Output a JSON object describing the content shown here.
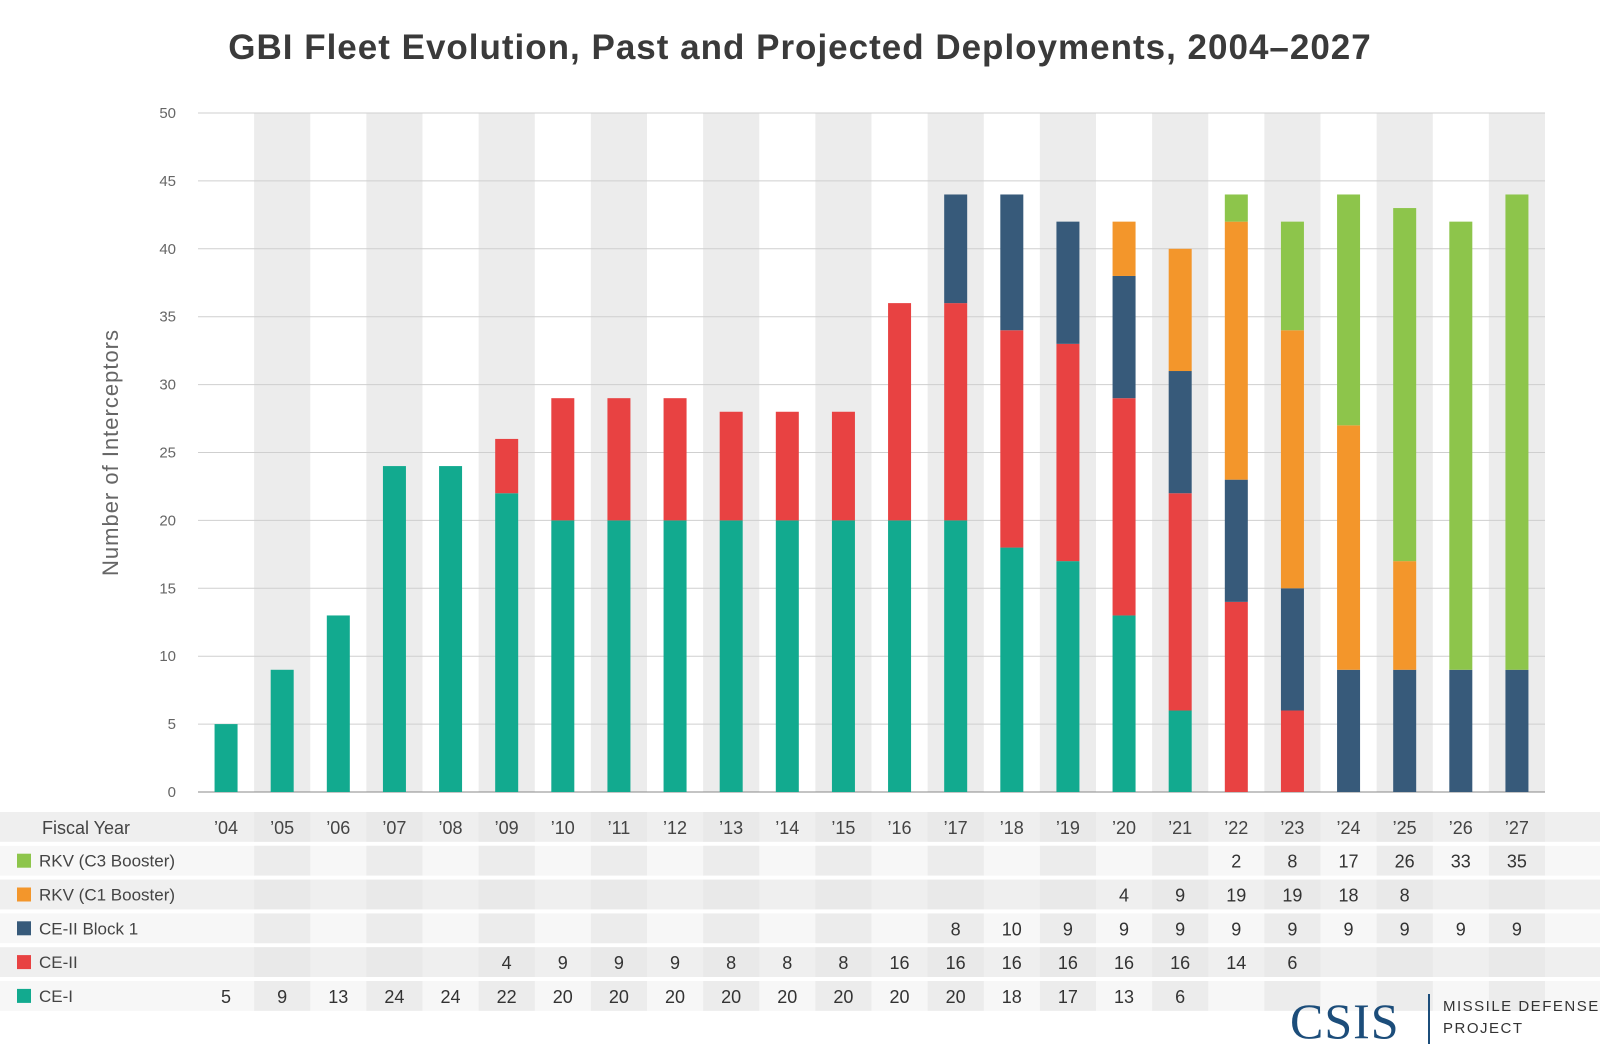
{
  "title": "GBI Fleet Evolution, Past and Projected Deployments, 2004–2027",
  "colors": {
    "rkv_c3": "#8dc54b",
    "rkv_c1": "#f3962b",
    "ce2_block1": "#375a7a",
    "ce2": "#e84242",
    "ce1": "#12aa8f",
    "band": "#ececec",
    "grid": "#cfcfcf",
    "axis_text": "#666666"
  },
  "logo": {
    "main": "CSIS",
    "sub_line1": "MISSILE DEFENSE",
    "sub_line2": "PROJECT"
  },
  "chart_data": {
    "type": "bar",
    "stacked": true,
    "ylabel": "Number of Interceptors",
    "xlabel": "Fiscal Year",
    "ylim": [
      0,
      50
    ],
    "yticks": [
      0,
      5,
      10,
      15,
      20,
      25,
      30,
      35,
      40,
      45,
      50
    ],
    "grid": true,
    "categories": [
      "’04",
      "’05",
      "’06",
      "’07",
      "’08",
      "’09",
      "’10",
      "’11",
      "’12",
      "’13",
      "’14",
      "’15",
      "’16",
      "’17",
      "’18",
      "’19",
      "’20",
      "’21",
      "’22",
      "’23",
      "’24",
      "’25",
      "’26",
      "’27"
    ],
    "series": [
      {
        "name": "CE-I",
        "color_key": "ce1",
        "values": [
          5,
          9,
          13,
          24,
          24,
          22,
          20,
          20,
          20,
          20,
          20,
          20,
          20,
          20,
          18,
          17,
          13,
          6,
          null,
          null,
          null,
          null,
          null,
          null
        ]
      },
      {
        "name": "CE-II",
        "color_key": "ce2",
        "values": [
          null,
          null,
          null,
          null,
          null,
          4,
          9,
          9,
          9,
          8,
          8,
          8,
          16,
          16,
          16,
          16,
          16,
          16,
          14,
          6,
          null,
          null,
          null,
          null
        ]
      },
      {
        "name": "CE-II Block 1",
        "color_key": "ce2_block1",
        "values": [
          null,
          null,
          null,
          null,
          null,
          null,
          null,
          null,
          null,
          null,
          null,
          null,
          null,
          8,
          10,
          9,
          9,
          9,
          9,
          9,
          9,
          9,
          9,
          9
        ]
      },
      {
        "name": "RKV (C1 Booster)",
        "color_key": "rkv_c1",
        "values": [
          null,
          null,
          null,
          null,
          null,
          null,
          null,
          null,
          null,
          null,
          null,
          null,
          null,
          null,
          null,
          null,
          4,
          9,
          19,
          19,
          18,
          8,
          null,
          null
        ]
      },
      {
        "name": "RKV (C3 Booster)",
        "color_key": "rkv_c3",
        "values": [
          null,
          null,
          null,
          null,
          null,
          null,
          null,
          null,
          null,
          null,
          null,
          null,
          null,
          null,
          null,
          null,
          null,
          null,
          2,
          8,
          17,
          26,
          33,
          35
        ]
      }
    ],
    "table_rows_order": [
      "RKV (C3 Booster)",
      "RKV (C1 Booster)",
      "CE-II Block 1",
      "CE-II",
      "CE-I"
    ]
  }
}
